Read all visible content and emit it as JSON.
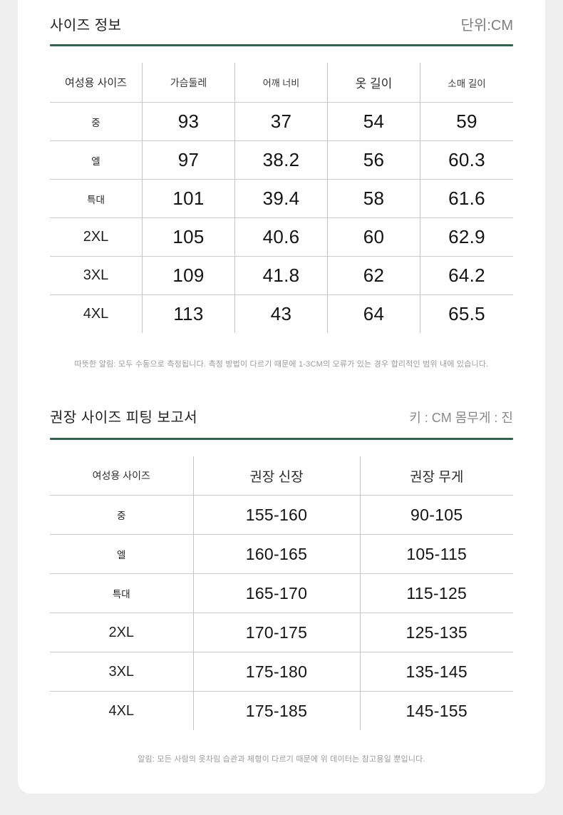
{
  "colors": {
    "accent_green": "#33634f",
    "background": "#efefef"
  },
  "section_size_info": {
    "title": "사이즈 정보",
    "unit": "단위:CM",
    "note": "따뜻한 알림: 모두 수동으로 측정됩니다. 측정 방법이 다르기 때문에 1-3CM의 오류가 있는 경우 합리적인 범위 내에 있습니다.",
    "table": {
      "headers": [
        "여성용 사이즈",
        "가슴둘레",
        "어깨 너비",
        "옷 길이",
        "소매 길이"
      ],
      "rows": [
        [
          "중",
          "93",
          "37",
          "54",
          "59"
        ],
        [
          "엘",
          "97",
          "38.2",
          "56",
          "60.3"
        ],
        [
          "특대",
          "101",
          "39.4",
          "58",
          "61.6"
        ],
        [
          "2XL",
          "105",
          "40.6",
          "60",
          "62.9"
        ],
        [
          "3XL",
          "109",
          "41.8",
          "62",
          "64.2"
        ],
        [
          "4XL",
          "113",
          "43",
          "64",
          "65.5"
        ]
      ]
    }
  },
  "section_fitting": {
    "title": "권장 사이즈 피팅 보고서",
    "unit": "키 : CM 몸무게 : 진",
    "note": "알림: 모든 사람의 옷차림 습관과 체형이 다르기 때문에 위 데이터는 참고용일 뿐입니다.",
    "table": {
      "headers": [
        "여성용 사이즈",
        "권장 신장",
        "권장 무게"
      ],
      "rows": [
        [
          "중",
          "155-160",
          "90-105"
        ],
        [
          "엘",
          "160-165",
          "105-115"
        ],
        [
          "특대",
          "165-170",
          "115-125"
        ],
        [
          "2XL",
          "170-175",
          "125-135"
        ],
        [
          "3XL",
          "175-180",
          "135-145"
        ],
        [
          "4XL",
          "175-185",
          "145-155"
        ]
      ]
    }
  }
}
